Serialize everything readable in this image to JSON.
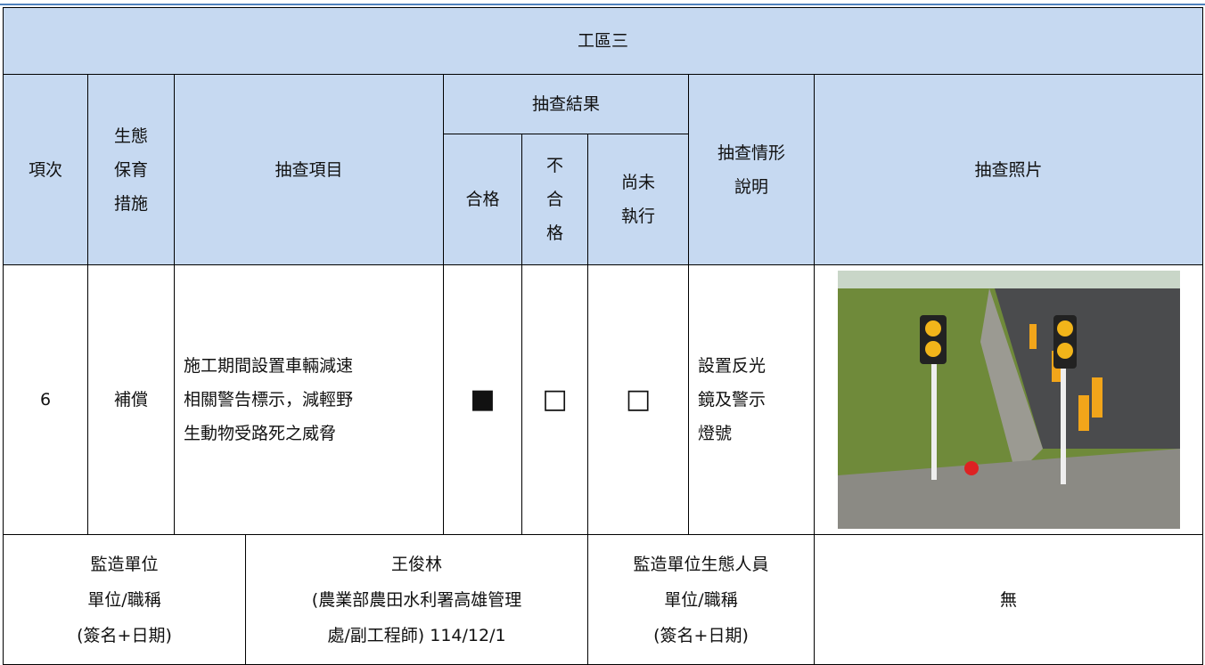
{
  "table": {
    "title": "工區三",
    "header": {
      "item_no": "項次",
      "measure": [
        "生態",
        "保育",
        "措施"
      ],
      "check_item": "抽查項目",
      "result": "抽查結果",
      "pass": "合格",
      "fail": [
        "不",
        "合",
        "格"
      ],
      "not_done": [
        "尚未",
        "執行"
      ],
      "description": [
        "抽查情形",
        "說明"
      ],
      "photo": "抽查照片"
    },
    "rows": [
      {
        "item_no": "6",
        "measure": "補償",
        "check_item": [
          "施工期間設置車輛減速",
          "相關警告標示，減輕野",
          "生動物受路死之威脅"
        ],
        "pass": "■",
        "fail": "□",
        "not_done": "□",
        "description": [
          "設置反光",
          "鏡及警示",
          "燈號"
        ]
      }
    ],
    "footer": {
      "supervisor_label": [
        "監造單位",
        "單位/職稱",
        "(簽名+日期)"
      ],
      "supervisor_value": [
        "王俊林",
        "(農業部農田水利署高雄管理",
        "處/副工程師) 114/12/1"
      ],
      "ecologist_label": [
        "監造單位生態人員",
        "單位/職稱",
        "(簽名+日期)"
      ],
      "ecologist_value": "無"
    }
  }
}
